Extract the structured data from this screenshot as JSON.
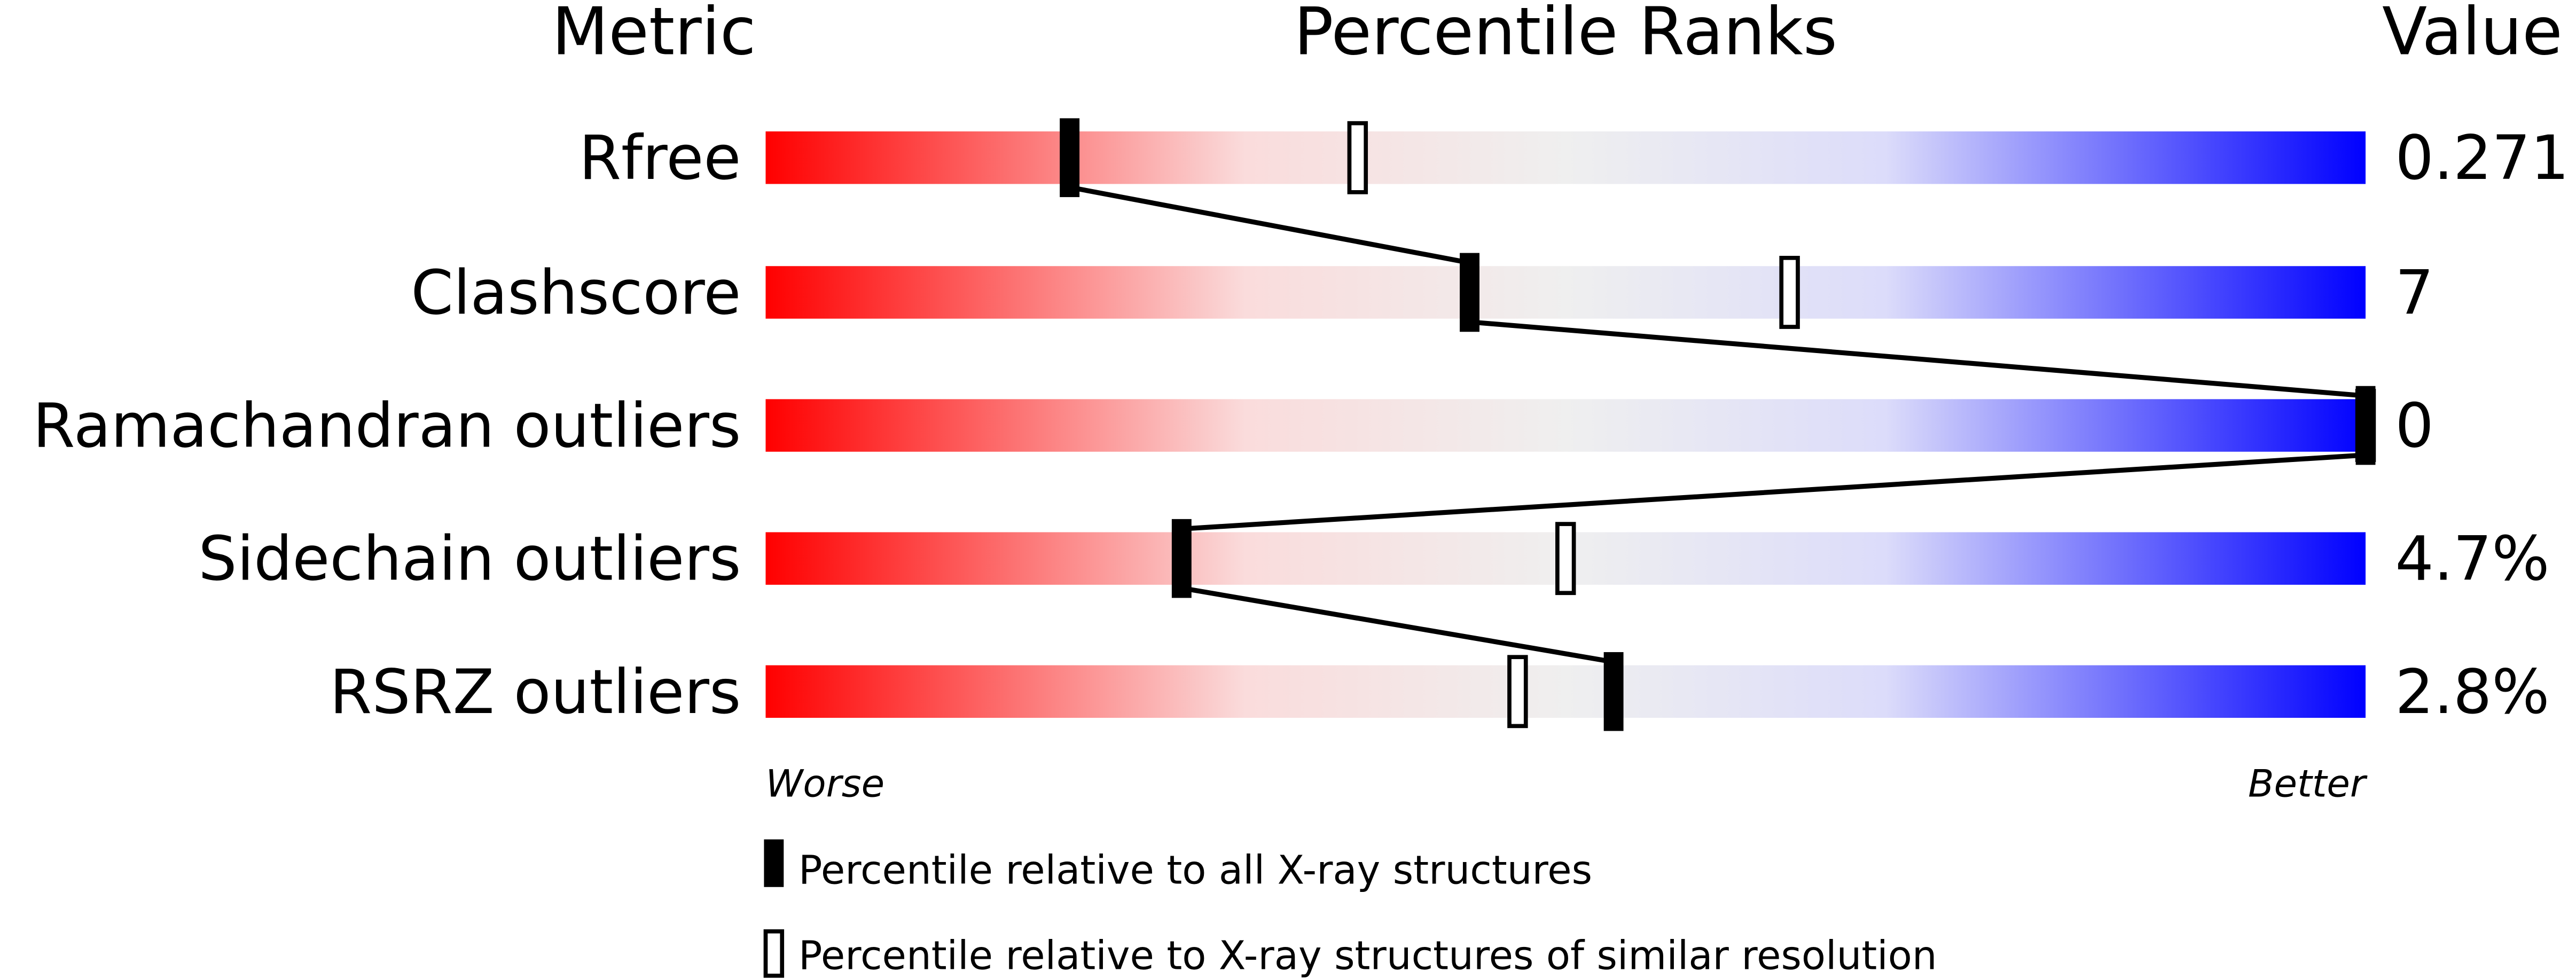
{
  "chart_data": {
    "type": "percentile-bar",
    "headers": {
      "metric": "Metric",
      "ranks": "Percentile Ranks",
      "value": "Value"
    },
    "axis": {
      "worse": "Worse",
      "better": "Better",
      "range": [
        0,
        100
      ]
    },
    "gradient_colors": [
      "#ff0000",
      "#fadcdc",
      "#efefef",
      "#dcdcfa",
      "#0000ff"
    ],
    "metrics": [
      {
        "name": "Rfree",
        "value": "0.271",
        "percentile_all": 19,
        "percentile_similar": 37
      },
      {
        "name": "Clashscore",
        "value": "7",
        "percentile_all": 44,
        "percentile_similar": 64
      },
      {
        "name": "Ramachandran outliers",
        "value": "0",
        "percentile_all": 100,
        "percentile_similar": 100
      },
      {
        "name": "Sidechain outliers",
        "value": "4.7%",
        "percentile_all": 26,
        "percentile_similar": 50
      },
      {
        "name": "RSRZ outliers",
        "value": "2.8%",
        "percentile_all": 53,
        "percentile_similar": 47
      }
    ],
    "legend": {
      "all": "Percentile relative to all X-ray structures",
      "similar": "Percentile relative to X-ray structures of similar resolution"
    }
  }
}
